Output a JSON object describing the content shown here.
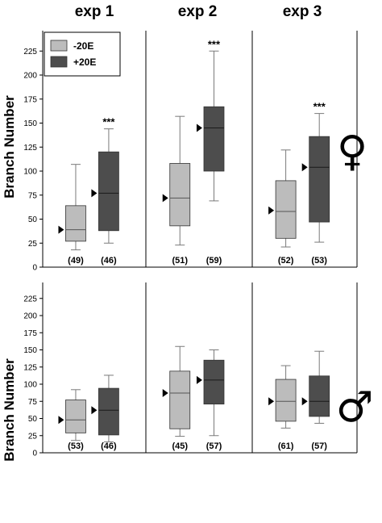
{
  "chart_data": {
    "type": "boxplot",
    "columns": [
      "exp 1",
      "exp 2",
      "exp 3"
    ],
    "ylabel": "Branch Number",
    "ylim": [
      0,
      240
    ],
    "yticks": [
      0,
      25,
      50,
      75,
      100,
      125,
      150,
      175,
      200,
      225
    ],
    "grid": false,
    "legend": {
      "position": "top-left",
      "entries": [
        {
          "label": "-20E",
          "color": "#bcbcbc"
        },
        {
          "label": "+20E",
          "color": "#4d4d4d"
        }
      ]
    },
    "rows": [
      {
        "sex": "female",
        "symbol": "♀",
        "panels": [
          {
            "experiment": "exp 1",
            "boxes": [
              {
                "group": "-20E",
                "whisker_low": 18,
                "q1": 27,
                "median": 39,
                "q3": 64,
                "whisker_high": 107,
                "mean": 39,
                "n": "(49)",
                "significance": ""
              },
              {
                "group": "+20E",
                "whisker_low": 25,
                "q1": 38,
                "median": 77,
                "q3": 120,
                "whisker_high": 144,
                "mean": 77,
                "n": "(46)",
                "significance": "***"
              }
            ]
          },
          {
            "experiment": "exp 2",
            "boxes": [
              {
                "group": "-20E",
                "whisker_low": 23,
                "q1": 43,
                "median": 72,
                "q3": 108,
                "whisker_high": 157,
                "mean": 72,
                "n": "(51)",
                "significance": ""
              },
              {
                "group": "+20E",
                "whisker_low": 69,
                "q1": 100,
                "median": 145,
                "q3": 167,
                "whisker_high": 225,
                "mean": 145,
                "n": "(59)",
                "significance": "***"
              }
            ]
          },
          {
            "experiment": "exp 3",
            "boxes": [
              {
                "group": "-20E",
                "whisker_low": 21,
                "q1": 30,
                "median": 58,
                "q3": 90,
                "whisker_high": 122,
                "mean": 59,
                "n": "(52)",
                "significance": ""
              },
              {
                "group": "+20E",
                "whisker_low": 26,
                "q1": 47,
                "median": 104,
                "q3": 136,
                "whisker_high": 160,
                "mean": 104,
                "n": "(53)",
                "significance": "***"
              }
            ]
          }
        ]
      },
      {
        "sex": "male",
        "symbol": "♂",
        "panels": [
          {
            "experiment": "exp 1",
            "boxes": [
              {
                "group": "-20E",
                "whisker_low": 18,
                "q1": 29,
                "median": 48,
                "q3": 77,
                "whisker_high": 92,
                "mean": 48,
                "n": "(53)",
                "significance": ""
              },
              {
                "group": "+20E",
                "whisker_low": 16,
                "q1": 26,
                "median": 62,
                "q3": 94,
                "whisker_high": 113,
                "mean": 62,
                "n": "(46)",
                "significance": ""
              }
            ]
          },
          {
            "experiment": "exp 2",
            "boxes": [
              {
                "group": "-20E",
                "whisker_low": 24,
                "q1": 35,
                "median": 87,
                "q3": 119,
                "whisker_high": 155,
                "mean": 87,
                "n": "(45)",
                "significance": ""
              },
              {
                "group": "+20E",
                "whisker_low": 25,
                "q1": 71,
                "median": 106,
                "q3": 135,
                "whisker_high": 150,
                "mean": 106,
                "n": "(57)",
                "significance": ""
              }
            ]
          },
          {
            "experiment": "exp 3",
            "boxes": [
              {
                "group": "-20E",
                "whisker_low": 36,
                "q1": 46,
                "median": 75,
                "q3": 107,
                "whisker_high": 127,
                "mean": 75,
                "n": "(61)",
                "significance": ""
              },
              {
                "group": "+20E",
                "whisker_low": 43,
                "q1": 53,
                "median": 75,
                "q3": 112,
                "whisker_high": 148,
                "mean": 75,
                "n": "(57)",
                "significance": ""
              }
            ]
          }
        ]
      }
    ]
  }
}
